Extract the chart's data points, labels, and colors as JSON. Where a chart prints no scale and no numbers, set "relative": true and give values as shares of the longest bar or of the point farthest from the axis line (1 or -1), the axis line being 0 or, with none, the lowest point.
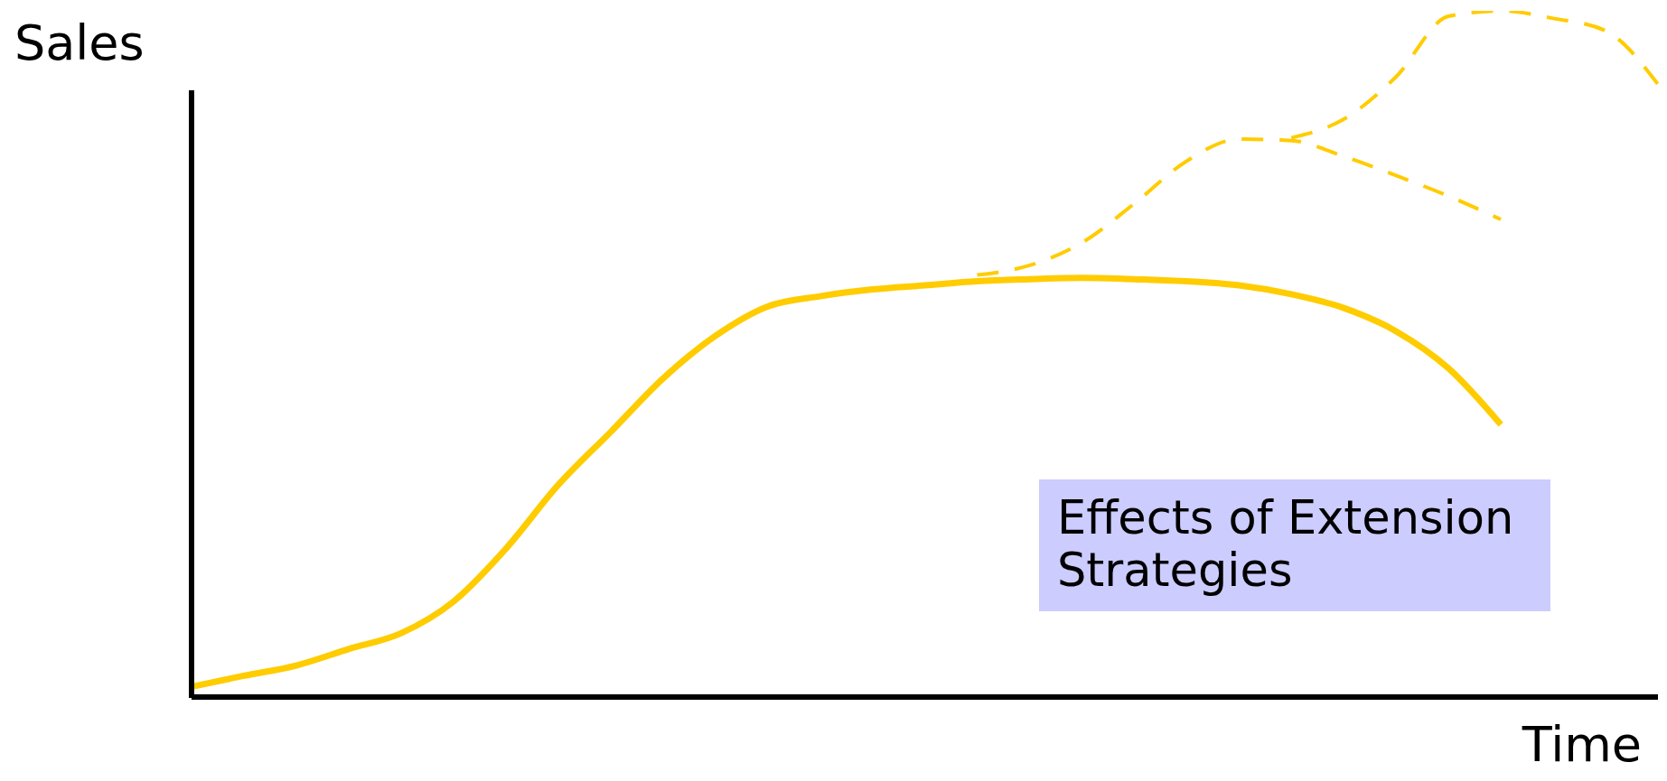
{
  "chart_data": {
    "type": "line",
    "relative": true,
    "ylabel": "Sales",
    "xlabel": "Time",
    "categories": [
      null,
      null,
      null,
      null,
      null,
      null,
      null,
      null,
      null,
      null,
      null,
      null,
      null,
      null,
      null,
      null,
      null,
      null,
      null,
      null,
      null,
      null,
      null,
      null,
      null,
      null,
      null,
      null,
      null
    ],
    "series": [
      {
        "color": "#ffcc00",
        "line_style": "solid",
        "values": [
          0.015,
          0.031,
          0.046,
          0.07,
          0.093,
          0.139,
          0.216,
          0.309,
          0.386,
          0.464,
          0.526,
          0.569,
          0.584,
          0.594,
          0.6,
          0.606,
          0.609,
          0.611,
          0.609,
          0.606,
          0.6,
          0.587,
          0.567,
          0.533,
          0.479,
          0.397,
          null,
          null,
          null
        ]
      },
      {
        "color": "#ffcc00",
        "line_style": "dashed",
        "values": [
          null,
          null,
          null,
          null,
          null,
          null,
          null,
          null,
          null,
          null,
          null,
          null,
          null,
          null,
          null,
          0.615,
          0.629,
          0.662,
          0.719,
          0.781,
          0.813,
          0.811,
          0.788,
          0.76,
          0.73,
          0.696,
          null,
          null,
          null
        ]
      },
      {
        "color": "#ffcc00",
        "line_style": "dashed",
        "values": [
          null,
          null,
          null,
          null,
          null,
          null,
          null,
          null,
          null,
          null,
          null,
          null,
          null,
          null,
          null,
          null,
          null,
          null,
          null,
          null,
          null,
          0.815,
          0.842,
          0.904,
          0.992,
          1,
          0.989,
          0.971,
          0.893
        ]
      }
    ],
    "annotations": [
      "Effects of Extension Strategies"
    ],
    "marker": "none"
  }
}
